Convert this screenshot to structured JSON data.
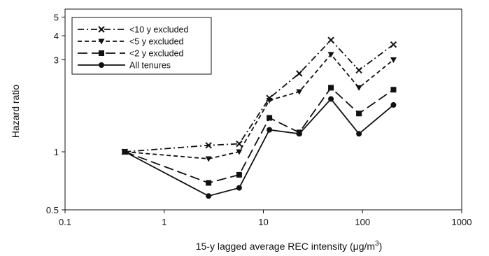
{
  "chart_data": {
    "type": "line",
    "title": "",
    "xlabel": "15-y lagged  average REC intensity (",
    "xlabel_unit": "μg/m",
    "xlabel_unit_sup": "3",
    "xlabel_close": ")",
    "ylabel": "Hazard  ratio",
    "xscale": "log",
    "yscale": "log",
    "xlim": [
      0.1,
      1000
    ],
    "ylim": [
      0.5,
      5.5
    ],
    "x_ticks": [
      0.1,
      1,
      10,
      100,
      1000
    ],
    "x_tick_labels": [
      "0.1",
      "1",
      "10",
      "100",
      "1000"
    ],
    "y_ticks": [
      0.5,
      1,
      3,
      4,
      5
    ],
    "y_tick_labels": [
      "0.5",
      "1",
      "3",
      "4",
      "5"
    ],
    "grid": false,
    "legend_position": "top-left",
    "x": [
      0.4,
      2.8,
      5.7,
      11.5,
      23,
      48,
      92,
      205
    ],
    "series": [
      {
        "name": "<10 y excluded",
        "style": "dashdot",
        "marker": "x",
        "values": [
          1.0,
          1.08,
          1.1,
          1.9,
          2.55,
          3.8,
          2.65,
          3.6
        ]
      },
      {
        "name": "<5 y excluded",
        "style": "dashed",
        "marker": "triangle-down",
        "values": [
          1.0,
          0.92,
          1.0,
          1.85,
          2.05,
          3.2,
          2.15,
          3.0
        ]
      },
      {
        "name": "<2 y excluded",
        "style": "longdash",
        "marker": "square",
        "values": [
          1.0,
          0.69,
          0.76,
          1.5,
          1.26,
          2.15,
          1.58,
          2.1
        ]
      },
      {
        "name": "All tenures",
        "style": "solid",
        "marker": "circle",
        "values": [
          1.0,
          0.59,
          0.65,
          1.3,
          1.24,
          1.88,
          1.24,
          1.75
        ]
      }
    ]
  }
}
